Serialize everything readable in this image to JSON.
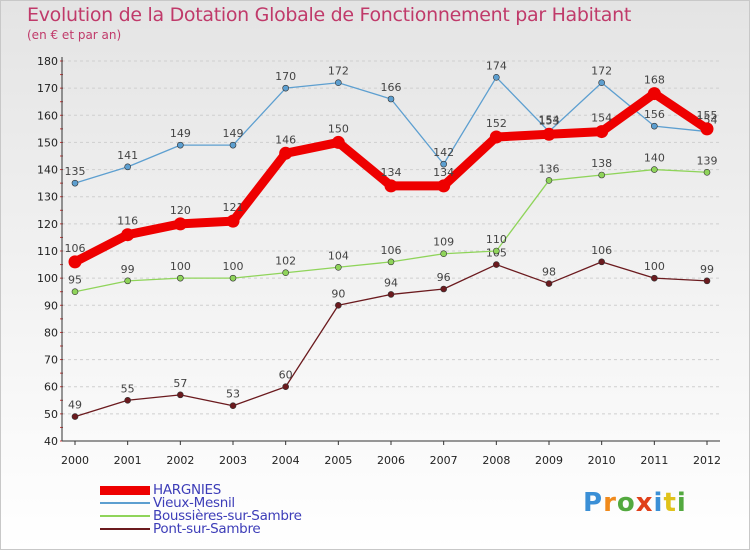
{
  "title": "Evolution de la Dotation Globale de Fonctionnement par Habitant",
  "subtitle": "(en € et par an)",
  "brand": {
    "text": "Proxiti",
    "colors": [
      "#3a8fd6",
      "#f08a1c",
      "#53a93f",
      "#e0401a",
      "#3a8fd6",
      "#e0c21a",
      "#53a93f"
    ]
  },
  "chart_data": {
    "type": "line",
    "categories": [
      "2000",
      "2001",
      "2002",
      "2003",
      "2004",
      "2005",
      "2006",
      "2007",
      "2008",
      "2009",
      "2010",
      "2011",
      "2012"
    ],
    "ylim": [
      40,
      180
    ],
    "yticks": [
      40,
      50,
      60,
      70,
      80,
      90,
      100,
      110,
      120,
      130,
      140,
      150,
      160,
      170,
      180
    ],
    "grid": "horizontal dashed",
    "series": [
      {
        "name": "Pont-sur-Sambre",
        "color": "#6b1a1e",
        "weight": "thin",
        "values": [
          49,
          55,
          57,
          53,
          60,
          90,
          94,
          96,
          105,
          98,
          106,
          100,
          99
        ],
        "labels": [
          "49",
          "55",
          "57",
          "53",
          "60",
          "90",
          "94",
          "96",
          "105",
          "98",
          "106",
          "100",
          "99"
        ]
      },
      {
        "name": "Boussières-sur-Sambre",
        "color": "#8fd45a",
        "weight": "thin",
        "values": [
          95,
          99,
          100,
          100,
          102,
          104,
          106,
          109,
          110,
          136,
          138,
          140,
          139
        ],
        "labels": [
          "95",
          "99",
          "100",
          "100",
          "102",
          "104",
          "106",
          "109",
          "110",
          "136",
          "138",
          "140",
          "139"
        ]
      },
      {
        "name": "Vieux-Mesnil",
        "color": "#5d9fd0",
        "weight": "thin",
        "values": [
          135,
          141,
          149,
          149,
          170,
          172,
          166,
          142,
          174,
          154,
          172,
          156,
          154
        ],
        "labels": [
          "135",
          "141",
          "149",
          "149",
          "170",
          "172",
          "166",
          "142",
          "174",
          "154",
          "172",
          "156",
          "154"
        ]
      },
      {
        "name": "HARGNIES",
        "color": "#ee0000",
        "weight": "thick",
        "values": [
          106,
          116,
          120,
          121,
          146,
          150,
          134,
          134,
          152,
          153,
          154,
          168,
          155
        ],
        "labels": [
          "106",
          "116",
          "120",
          "121",
          "146",
          "150",
          "134",
          "134",
          "152",
          "153",
          "154",
          "168",
          "155"
        ]
      }
    ],
    "legend": [
      "HARGNIES",
      "Vieux-Mesnil",
      "Boussières-sur-Sambre",
      "Pont-sur-Sambre"
    ],
    "legend_position": "bottom-left"
  }
}
